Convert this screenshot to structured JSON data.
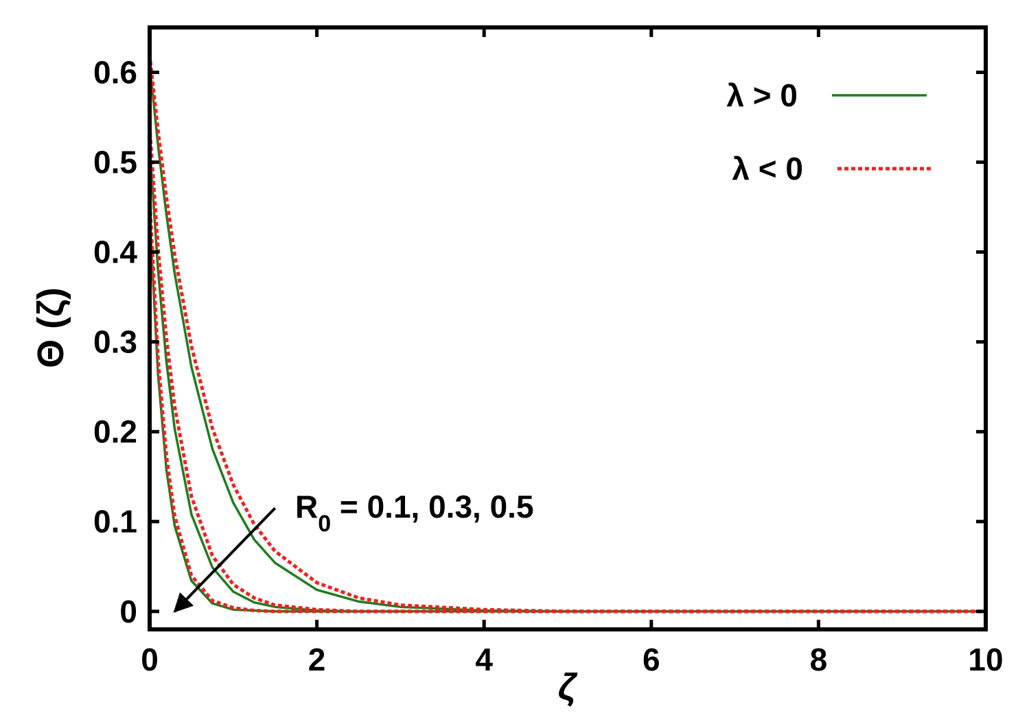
{
  "chart_data": {
    "type": "line",
    "xlabel": "ζ",
    "ylabel": "Θ (ζ)",
    "xlim": [
      0,
      10
    ],
    "ylim": [
      -0.02,
      0.65
    ],
    "x_ticks": [
      0,
      2,
      4,
      6,
      8,
      10
    ],
    "y_ticks": [
      0,
      0.1,
      0.2,
      0.3,
      0.4,
      0.5,
      0.6
    ],
    "x_tick_labels": [
      "0",
      "2",
      "4",
      "6",
      "8",
      "10"
    ],
    "y_tick_labels": [
      "0",
      "0.1",
      "0.2",
      "0.3",
      "0.4",
      "0.5",
      "0.6"
    ],
    "grid": false,
    "legend_position": "top-right",
    "legend": [
      {
        "label": "λ > 0",
        "color": "#1e7d1e",
        "style": "solid"
      },
      {
        "label": "λ < 0",
        "color": "#ee2222",
        "style": "dotted"
      }
    ],
    "annotation": {
      "text_main": "R",
      "text_sub": "0",
      "text_rest": " = 0.1, 0.3, 0.5",
      "arrow_from": [
        1.5,
        0.115
      ],
      "arrow_to": [
        0.3,
        0.0
      ]
    },
    "series": [
      {
        "group": "λ > 0",
        "R0": 0.1,
        "x": [
          0,
          0.1,
          0.2,
          0.3,
          0.5,
          0.75,
          1.0,
          1.25,
          1.5,
          2.0,
          2.5,
          3.0,
          4.0,
          5.0,
          6.0,
          8.0,
          10.0
        ],
        "y": [
          0.61,
          0.519,
          0.442,
          0.376,
          0.272,
          0.181,
          0.121,
          0.08,
          0.054,
          0.024,
          0.011,
          0.005,
          0.001,
          0.0,
          0.0,
          0.0,
          0.0
        ]
      },
      {
        "group": "λ > 0",
        "R0": 0.3,
        "x": [
          0,
          0.1,
          0.2,
          0.3,
          0.5,
          0.75,
          1.0,
          1.25,
          1.5,
          2.0,
          2.5,
          3.0,
          4.0,
          5.0,
          6.0,
          8.0,
          10.0
        ],
        "y": [
          0.52,
          0.38,
          0.278,
          0.203,
          0.108,
          0.049,
          0.022,
          0.01,
          0.005,
          0.001,
          0.0,
          0.0,
          0.0,
          0.0,
          0.0,
          0.0,
          0.0
        ]
      },
      {
        "group": "λ > 0",
        "R0": 0.5,
        "x": [
          0,
          0.1,
          0.2,
          0.3,
          0.5,
          0.75,
          1.0,
          1.25,
          1.5,
          2.0,
          2.5,
          3.0,
          4.0,
          5.0,
          6.0,
          8.0,
          10.0
        ],
        "y": [
          0.44,
          0.264,
          0.158,
          0.095,
          0.034,
          0.009,
          0.002,
          0.001,
          0.0,
          0.0,
          0.0,
          0.0,
          0.0,
          0.0,
          0.0,
          0.0,
          0.0
        ]
      },
      {
        "group": "λ < 0",
        "R0": 0.1,
        "x": [
          0,
          0.1,
          0.2,
          0.3,
          0.5,
          0.75,
          1.0,
          1.25,
          1.5,
          2.0,
          2.5,
          3.0,
          4.0,
          5.0,
          6.0,
          8.0,
          10.0
        ],
        "y": [
          0.62,
          0.535,
          0.461,
          0.397,
          0.295,
          0.204,
          0.141,
          0.097,
          0.067,
          0.032,
          0.015,
          0.007,
          0.002,
          0.0,
          0.0,
          0.0,
          0.0
        ]
      },
      {
        "group": "λ < 0",
        "R0": 0.3,
        "x": [
          0,
          0.1,
          0.2,
          0.3,
          0.5,
          0.75,
          1.0,
          1.25,
          1.5,
          2.0,
          2.5,
          3.0,
          4.0,
          5.0,
          6.0,
          8.0,
          10.0
        ],
        "y": [
          0.54,
          0.405,
          0.304,
          0.228,
          0.128,
          0.062,
          0.03,
          0.015,
          0.007,
          0.002,
          0.0,
          0.0,
          0.0,
          0.0,
          0.0,
          0.0,
          0.0
        ]
      },
      {
        "group": "λ < 0",
        "R0": 0.5,
        "x": [
          0,
          0.1,
          0.2,
          0.3,
          0.5,
          0.75,
          1.0,
          1.25,
          1.5,
          2.0,
          2.5,
          3.0,
          4.0,
          5.0,
          6.0,
          8.0,
          10.0
        ],
        "y": [
          0.46,
          0.282,
          0.173,
          0.106,
          0.04,
          0.012,
          0.004,
          0.001,
          0.0,
          0.0,
          0.0,
          0.0,
          0.0,
          0.0,
          0.0,
          0.0,
          0.0
        ]
      }
    ]
  }
}
